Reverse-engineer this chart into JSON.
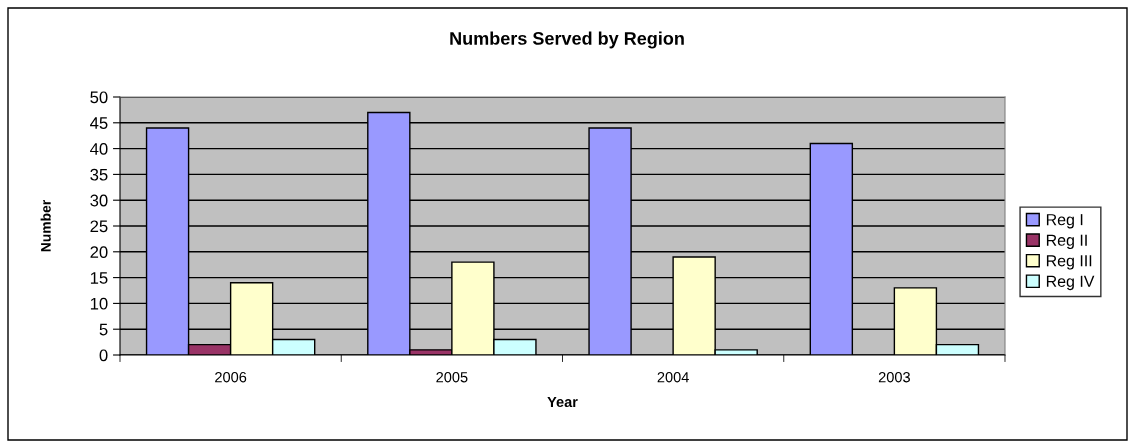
{
  "chart_data": {
    "type": "bar",
    "title": "Numbers Served by Region",
    "xlabel": "Year",
    "ylabel": "Number",
    "categories": [
      "2006",
      "2005",
      "2004",
      "2003"
    ],
    "series": [
      {
        "name": "Reg I",
        "color": "#9999ff",
        "values": [
          44,
          47,
          44,
          41
        ]
      },
      {
        "name": "Reg II",
        "color": "#993366",
        "values": [
          2,
          1,
          null,
          null
        ]
      },
      {
        "name": "Reg III",
        "color": "#ffffcc",
        "values": [
          14,
          18,
          19,
          13
        ]
      },
      {
        "name": "Reg IV",
        "color": "#ccffff",
        "values": [
          3,
          3,
          1,
          2
        ]
      }
    ],
    "ylim": [
      0,
      50
    ],
    "yticks": [
      0,
      5,
      10,
      15,
      20,
      25,
      30,
      35,
      40,
      45,
      50
    ],
    "grid": "y",
    "legend": "right"
  }
}
